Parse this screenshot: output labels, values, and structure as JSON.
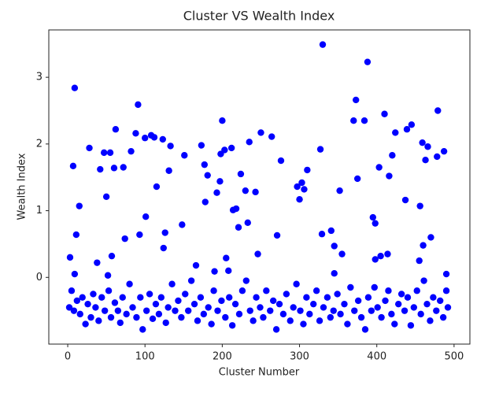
{
  "chart_data": {
    "type": "scatter",
    "title": "Cluster VS Wealth Index",
    "x_label": "Cluster Number",
    "y_label": "Wealth Index",
    "color": "#0000ff",
    "xlim": [
      -24.5,
      520.5
    ],
    "ylim": [
      -1.0,
      3.71
    ],
    "xticks": [
      0,
      100,
      200,
      300,
      400,
      500
    ],
    "yticks": [
      0,
      1,
      2,
      3
    ],
    "x": [
      3,
      7,
      9,
      11,
      15,
      9,
      28,
      38,
      42,
      47,
      50,
      52,
      55,
      57,
      60,
      62,
      72,
      74,
      82,
      88,
      91,
      93,
      100,
      101,
      108,
      112,
      115,
      123,
      124,
      126,
      131,
      133,
      148,
      151,
      166,
      173,
      177,
      178,
      181,
      190,
      193,
      197,
      200,
      198,
      203,
      205,
      208,
      212,
      214,
      218,
      221,
      224,
      230,
      233,
      235,
      243,
      246,
      250,
      264,
      271,
      276,
      297,
      300,
      303,
      306,
      310,
      327,
      329,
      330,
      341,
      352,
      370,
      373,
      375,
      384,
      388,
      395,
      398,
      403,
      405,
      410,
      414,
      416,
      420,
      424,
      437,
      439,
      445,
      456,
      459,
      463,
      466,
      470,
      479,
      478,
      487,
      490,
      460,
      455,
      398,
      345,
      355,
      345,
      2,
      5,
      8,
      12,
      16,
      19,
      23,
      26,
      30,
      33,
      36,
      40,
      44,
      48,
      53,
      56,
      61,
      65,
      68,
      71,
      76,
      80,
      84,
      89,
      94,
      97,
      102,
      106,
      110,
      114,
      118,
      121,
      127,
      130,
      135,
      139,
      143,
      147,
      152,
      156,
      160,
      164,
      168,
      172,
      176,
      182,
      186,
      189,
      194,
      199,
      204,
      209,
      213,
      217,
      222,
      226,
      231,
      236,
      240,
      244,
      249,
      253,
      257,
      262,
      266,
      270,
      274,
      279,
      283,
      288,
      292,
      296,
      301,
      305,
      309,
      313,
      318,
      322,
      326,
      331,
      336,
      340,
      344,
      349,
      353,
      358,
      362,
      366,
      371,
      376,
      380,
      385,
      389,
      393,
      397,
      401,
      406,
      411,
      415,
      419,
      423,
      428,
      432,
      436,
      440,
      444,
      448,
      452,
      457,
      461,
      465,
      469,
      473,
      477,
      482,
      486,
      490,
      492
    ],
    "values": [
      0.3,
      1.67,
      2.84,
      0.64,
      1.07,
      0.05,
      1.94,
      0.22,
      1.62,
      1.87,
      1.21,
      0.03,
      1.87,
      0.32,
      1.64,
      2.22,
      1.65,
      0.58,
      1.89,
      2.16,
      2.59,
      0.64,
      2.09,
      0.91,
      2.13,
      2.1,
      1.36,
      2.07,
      0.44,
      0.67,
      1.6,
      1.97,
      0.79,
      1.83,
      0.18,
      1.98,
      1.69,
      1.13,
      1.53,
      0.09,
      1.27,
      1.44,
      2.35,
      1.85,
      1.91,
      0.29,
      0.1,
      1.94,
      1.01,
      1.03,
      0.75,
      1.55,
      1.3,
      0.82,
      2.03,
      1.28,
      0.35,
      2.17,
      2.11,
      0.63,
      1.75,
      1.36,
      1.17,
      1.42,
      1.32,
      1.61,
      1.92,
      0.65,
      3.49,
      0.7,
      1.3,
      2.35,
      2.66,
      1.48,
      2.35,
      3.23,
      0.9,
      0.81,
      1.65,
      0.32,
      2.45,
      0.35,
      1.52,
      1.83,
      2.17,
      1.16,
      2.22,
      2.29,
      1.07,
      2.02,
      1.76,
      1.96,
      0.6,
      2.5,
      1.81,
      1.89,
      0.05,
      0.48,
      0.25,
      0.27,
      0.06,
      0.35,
      0.47,
      -0.45,
      -0.2,
      -0.5,
      -0.35,
      -0.55,
      -0.3,
      -0.7,
      -0.4,
      -0.6,
      -0.25,
      -0.45,
      -0.65,
      -0.3,
      -0.5,
      -0.2,
      -0.6,
      -0.38,
      -0.5,
      -0.68,
      -0.3,
      -0.55,
      -0.1,
      -0.45,
      -0.6,
      -0.3,
      -0.78,
      -0.5,
      -0.25,
      -0.62,
      -0.4,
      -0.55,
      -0.3,
      -0.68,
      -0.45,
      -0.1,
      -0.5,
      -0.35,
      -0.6,
      -0.25,
      -0.5,
      -0.05,
      -0.4,
      -0.65,
      -0.3,
      -0.55,
      -0.45,
      -0.7,
      -0.2,
      -0.5,
      -0.35,
      -0.6,
      -0.3,
      -0.72,
      -0.4,
      -0.55,
      -0.2,
      -0.05,
      -0.5,
      -0.65,
      -0.3,
      -0.45,
      -0.6,
      -0.2,
      -0.5,
      -0.35,
      -0.78,
      -0.4,
      -0.55,
      -0.25,
      -0.65,
      -0.45,
      -0.1,
      -0.5,
      -0.7,
      -0.3,
      -0.55,
      -0.4,
      -0.2,
      -0.65,
      -0.45,
      -0.3,
      -0.6,
      -0.5,
      -0.25,
      -0.55,
      -0.4,
      -0.7,
      -0.15,
      -0.5,
      -0.35,
      -0.6,
      -0.78,
      -0.3,
      -0.5,
      -0.15,
      -0.45,
      -0.6,
      -0.35,
      -0.2,
      -0.55,
      -0.7,
      -0.4,
      -0.25,
      -0.5,
      -0.3,
      -0.72,
      -0.45,
      -0.2,
      -0.55,
      -0.05,
      -0.4,
      -0.65,
      -0.3,
      -0.5,
      -0.35,
      -0.6,
      -0.2,
      -0.45
    ]
  }
}
